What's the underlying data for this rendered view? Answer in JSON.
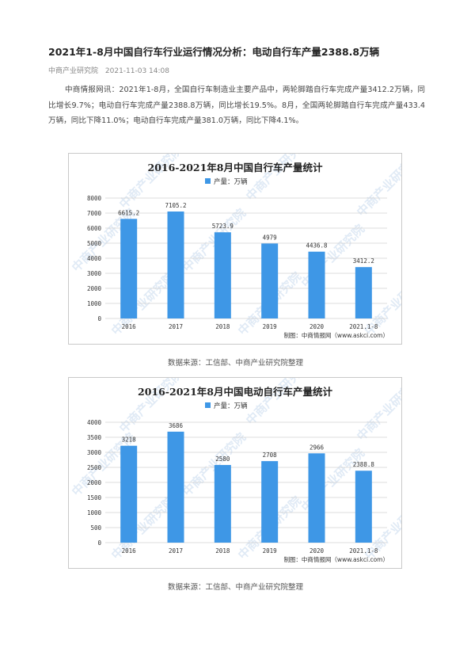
{
  "article": {
    "title": "2021年1-8月中国自行车行业运行情况分析：电动自行车产量2388.8万辆",
    "source": "中商产业研究院",
    "datetime": "2021-11-03 14:08",
    "paragraph": "中商情报网讯：2021年1-8月，全国自行车制造业主要产品中，两轮脚踏自行车完成产量3412.2万辆，同比增长9.7%；电动自行车完成产量2388.8万辆，同比增长19.5%。8月，全国两轮脚踏自行车完成产量433.4万辆，同比下降11.0%；电动自行车完成产量381.0万辆，同比下降4.1%。"
  },
  "watermark": "中商产业研究院",
  "colors": {
    "bar": "#3e97e6",
    "grid": "#d0d0d0",
    "axis_text": "#333333"
  },
  "chart_data": [
    {
      "type": "bar",
      "title": "2016-2021年8月中国自行车产量统计",
      "legend": "产量：万辆",
      "categories": [
        "2016",
        "2017",
        "2018",
        "2019",
        "2020",
        "2021.1-8"
      ],
      "value_labels": [
        "6615.2",
        "7105.2",
        "5723.9",
        "4979",
        "4436.8",
        "3412.2"
      ],
      "values": [
        6615.2,
        7105.2,
        5723.9,
        4979,
        4436.8,
        3412.2
      ],
      "yticks": [
        "8000",
        "7000",
        "6000",
        "5000",
        "4000",
        "3000",
        "2000",
        "1000",
        "0"
      ],
      "ylim": [
        0,
        8000
      ],
      "credit": "制图：中商情报网（www.askci.com）",
      "caption": "数据来源：工信部、中商产业研究院整理"
    },
    {
      "type": "bar",
      "title": "2016-2021年8月中国电动自行车产量统计",
      "legend": "产量：万辆",
      "categories": [
        "2016",
        "2017",
        "2018",
        "2019",
        "2020",
        "2021.1-8"
      ],
      "value_labels": [
        "3218",
        "3686",
        "2580",
        "2708",
        "2966",
        "2388.8"
      ],
      "values": [
        3218,
        3686,
        2580,
        2708,
        2966,
        2388.8
      ],
      "yticks": [
        "4000",
        "3500",
        "3000",
        "2500",
        "2000",
        "1500",
        "1000",
        "500",
        "0"
      ],
      "ylim": [
        0,
        4000
      ],
      "credit": "制图：中商情报网（www.askci.com）",
      "caption": "数据来源：工信部、中商产业研究院整理"
    }
  ]
}
